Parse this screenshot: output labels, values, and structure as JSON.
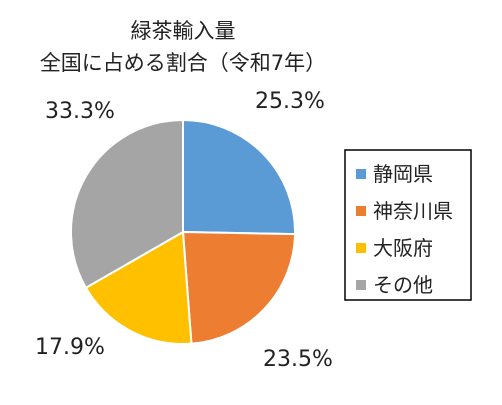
{
  "chart_data": {
    "type": "pie",
    "title": "緑茶輸入量",
    "subtitle": "全国に占める割合（令和7年）",
    "start_angle_deg": 0,
    "direction": "clockwise",
    "legend_position": "right",
    "slices": [
      {
        "label": "静岡県",
        "value": 25.3,
        "value_label": "25.3%",
        "color": "#5B9BD5"
      },
      {
        "label": "神奈川県",
        "value": 23.5,
        "value_label": "23.5%",
        "color": "#ED7D31"
      },
      {
        "label": "大阪府",
        "value": 17.9,
        "value_label": "17.9%",
        "color": "#FFC000"
      },
      {
        "label": "その他",
        "value": 33.3,
        "value_label": "33.3%",
        "color": "#A5A5A5"
      }
    ]
  }
}
